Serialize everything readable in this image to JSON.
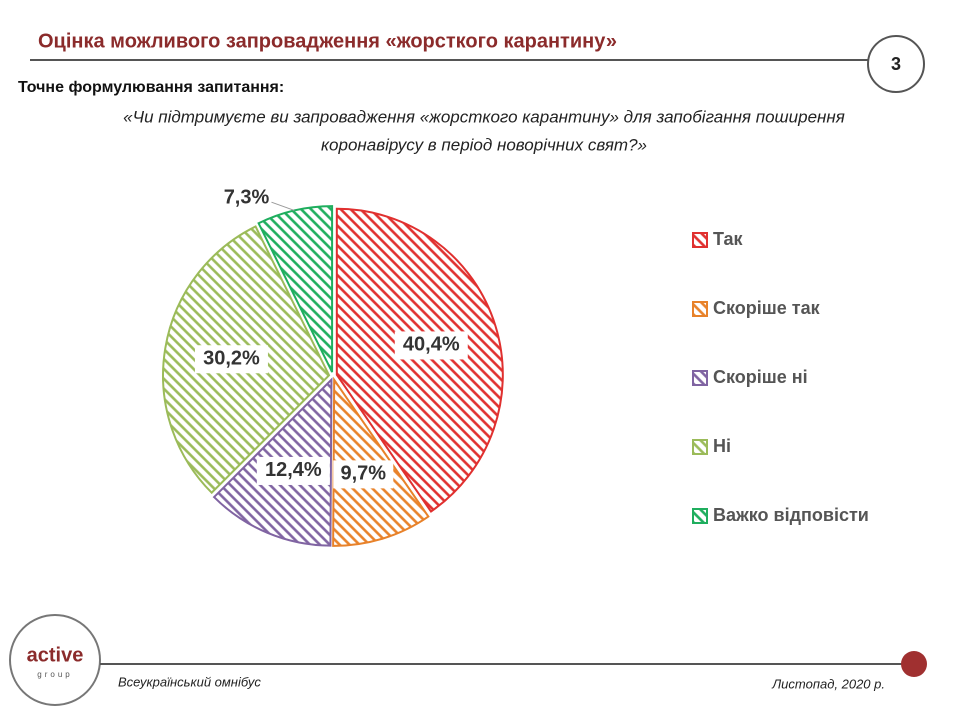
{
  "header": {
    "title": "Оцінка можливого запровадження «жорсткого карантину»",
    "page_number": "3"
  },
  "question": {
    "label": "Точне формулювання запитання:",
    "lines": [
      "«Чи підтримуєте ви запровадження «жорсткого карантину» для запобігання поширення",
      "коронавірусу в період новорічних свят?»"
    ]
  },
  "chart_data": {
    "type": "pie",
    "categories": [
      "Так",
      "Скоріше так",
      "Скоріше ні",
      "Ні",
      "Важко відповісти"
    ],
    "values": [
      40.4,
      9.7,
      12.4,
      30.2,
      7.3
    ],
    "value_labels": [
      "40,4%",
      "9,7%",
      "12,4%",
      "30,2%",
      "7,3%"
    ],
    "colors": [
      "#e0302f",
      "#e8822a",
      "#8064a2",
      "#9bbb59",
      "#1fae5e"
    ],
    "legend": "right"
  },
  "logo": {
    "name": "active",
    "sub": "group"
  },
  "footer": {
    "left": "Всеукраїнський омнібус",
    "right": "Листопад, 2020 р."
  }
}
